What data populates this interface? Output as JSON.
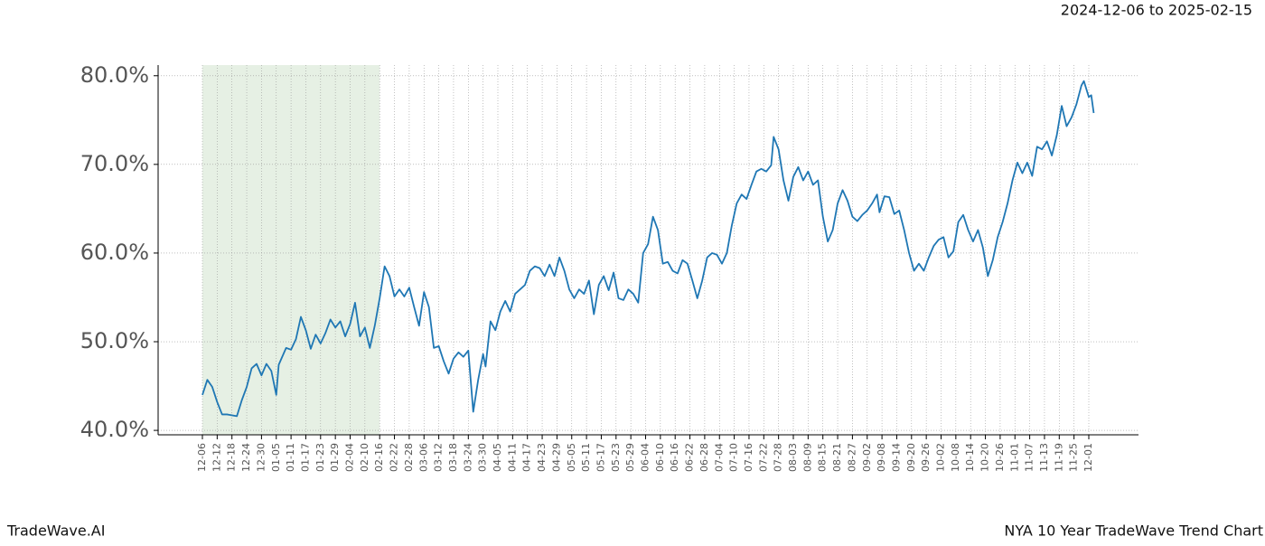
{
  "chart_data": {
    "type": "line",
    "subtitle": "2024-12-06 to 2025-02-15",
    "title": "NYA 10 Year TradeWave Trend Chart",
    "brand": "TradeWave.AI",
    "highlight": [
      "12-06",
      "02-16"
    ],
    "highlight_color": "#e6f0e4",
    "grid": true,
    "ylim": [
      39.5,
      81.2
    ],
    "yticks": [
      {
        "value": 40,
        "label": "40.0%"
      },
      {
        "value": 50,
        "label": "50.0%"
      },
      {
        "value": 60,
        "label": "60.0%"
      },
      {
        "value": 70,
        "label": "70.0%"
      },
      {
        "value": 80,
        "label": "80.0%"
      }
    ],
    "xticks": [
      "12-06",
      "12-12",
      "12-18",
      "12-24",
      "12-30",
      "01-05",
      "01-11",
      "01-17",
      "01-23",
      "01-29",
      "02-04",
      "02-10",
      "02-16",
      "02-22",
      "02-28",
      "03-06",
      "03-12",
      "03-18",
      "03-24",
      "03-30",
      "04-05",
      "04-11",
      "04-17",
      "04-23",
      "04-29",
      "05-05",
      "05-11",
      "05-17",
      "05-23",
      "05-29",
      "06-04",
      "06-10",
      "06-16",
      "06-22",
      "06-28",
      "07-04",
      "07-10",
      "07-16",
      "07-22",
      "07-28",
      "08-03",
      "08-09",
      "08-15",
      "08-21",
      "08-27",
      "09-02",
      "09-08",
      "09-14",
      "09-20",
      "09-26",
      "10-02",
      "10-08",
      "10-14",
      "10-20",
      "10-26",
      "11-01",
      "11-07",
      "11-13",
      "11-19",
      "11-25",
      "12-01"
    ],
    "x": [
      "12-06",
      "12-08",
      "12-10",
      "12-12",
      "12-14",
      "12-16",
      "12-20",
      "12-22",
      "12-24",
      "12-26",
      "12-28",
      "12-30",
      "01-01",
      "01-03",
      "01-05",
      "01-06",
      "01-09",
      "01-11",
      "01-13",
      "01-15",
      "01-17",
      "01-19",
      "01-21",
      "01-23",
      "01-25",
      "01-27",
      "01-29",
      "01-31",
      "02-02",
      "02-04",
      "02-06",
      "02-08",
      "02-10",
      "02-12",
      "02-14",
      "02-16",
      "02-18",
      "02-20",
      "02-22",
      "02-24",
      "02-26",
      "02-28",
      "03-02",
      "03-04",
      "03-06",
      "03-08",
      "03-10",
      "03-12",
      "03-14",
      "03-16",
      "03-18",
      "03-20",
      "03-22",
      "03-24",
      "03-26",
      "03-28",
      "03-30",
      "03-31",
      "04-02",
      "04-04",
      "04-06",
      "04-08",
      "04-10",
      "04-12",
      "04-14",
      "04-16",
      "04-18",
      "04-20",
      "04-22",
      "04-24",
      "04-26",
      "04-28",
      "04-30",
      "05-02",
      "05-04",
      "05-06",
      "05-08",
      "05-10",
      "05-12",
      "05-14",
      "05-16",
      "05-18",
      "05-20",
      "05-22",
      "05-24",
      "05-26",
      "05-28",
      "05-30",
      "06-01",
      "06-03",
      "06-05",
      "06-07",
      "06-09",
      "06-11",
      "06-13",
      "06-15",
      "06-17",
      "06-19",
      "06-21",
      "06-23",
      "06-25",
      "06-27",
      "06-29",
      "07-01",
      "07-03",
      "07-05",
      "07-07",
      "07-09",
      "07-11",
      "07-13",
      "07-15",
      "07-17",
      "07-19",
      "07-21",
      "07-23",
      "07-25",
      "07-26",
      "07-28",
      "07-30",
      "08-01",
      "08-03",
      "08-05",
      "08-07",
      "08-09",
      "08-11",
      "08-13",
      "08-15",
      "08-17",
      "08-19",
      "08-21",
      "08-23",
      "08-25",
      "08-27",
      "08-29",
      "08-31",
      "09-02",
      "09-04",
      "09-06",
      "09-07",
      "09-09",
      "09-11",
      "09-13",
      "09-15",
      "09-17",
      "09-19",
      "09-21",
      "09-23",
      "09-25",
      "09-27",
      "09-29",
      "10-01",
      "10-03",
      "10-05",
      "10-07",
      "10-09",
      "10-11",
      "10-13",
      "10-15",
      "10-17",
      "10-19",
      "10-21",
      "10-23",
      "10-25",
      "10-27",
      "10-29",
      "10-31",
      "11-02",
      "11-04",
      "11-06",
      "11-08",
      "11-10",
      "11-12",
      "11-14",
      "11-16",
      "11-18",
      "11-20",
      "11-22",
      "11-24",
      "11-26",
      "11-28",
      "11-29",
      "12-01",
      "12-02",
      "12-03"
    ],
    "series": [
      {
        "color": "#1f77b4",
        "values": [
          44.0,
          45.7,
          44.9,
          43.2,
          41.8,
          41.8,
          41.6,
          43.4,
          44.9,
          47.0,
          47.5,
          46.2,
          47.5,
          46.7,
          44.0,
          47.4,
          49.3,
          49.1,
          50.3,
          52.8,
          51.3,
          49.2,
          50.8,
          49.8,
          51.0,
          52.5,
          51.6,
          52.3,
          50.6,
          52.0,
          54.4,
          50.6,
          51.6,
          49.3,
          51.8,
          54.9,
          58.5,
          57.4,
          55.1,
          55.9,
          55.1,
          56.1,
          53.9,
          51.8,
          55.6,
          53.9,
          49.3,
          49.5,
          47.8,
          46.4,
          48.1,
          48.8,
          48.3,
          49.0,
          42.1,
          45.7,
          48.6,
          47.2,
          52.3,
          51.3,
          53.4,
          54.6,
          53.4,
          55.4,
          55.9,
          56.4,
          58.0,
          58.5,
          58.3,
          57.4,
          58.7,
          57.4,
          59.5,
          58.0,
          55.9,
          54.9,
          55.9,
          55.4,
          56.9,
          53.1,
          56.4,
          57.4,
          55.8,
          57.8,
          54.9,
          54.7,
          55.9,
          55.4,
          54.4,
          60.0,
          61.0,
          64.1,
          62.6,
          58.8,
          59.0,
          58.0,
          57.7,
          59.2,
          58.8,
          56.9,
          54.9,
          56.9,
          59.5,
          60.0,
          59.8,
          58.8,
          60.0,
          63.1,
          65.6,
          66.6,
          66.1,
          67.7,
          69.2,
          69.5,
          69.2,
          69.9,
          73.1,
          71.7,
          68.2,
          65.9,
          68.6,
          69.7,
          68.2,
          69.2,
          67.7,
          68.2,
          64.1,
          61.3,
          62.6,
          65.6,
          67.1,
          65.9,
          64.1,
          63.6,
          64.3,
          64.8,
          65.6,
          66.6,
          64.6,
          66.4,
          66.3,
          64.4,
          64.8,
          62.6,
          60.0,
          58.0,
          58.8,
          58.0,
          59.5,
          60.8,
          61.5,
          61.8,
          59.5,
          60.2,
          63.5,
          64.3,
          62.6,
          61.3,
          62.6,
          60.6,
          57.4,
          59.2,
          61.8,
          63.5,
          65.6,
          68.2,
          70.2,
          69.0,
          70.2,
          68.7,
          72.0,
          71.7,
          72.6,
          71.0,
          73.3,
          76.6,
          74.3,
          75.3,
          76.8,
          78.9,
          79.4,
          77.6,
          77.8,
          75.8
        ]
      }
    ]
  }
}
